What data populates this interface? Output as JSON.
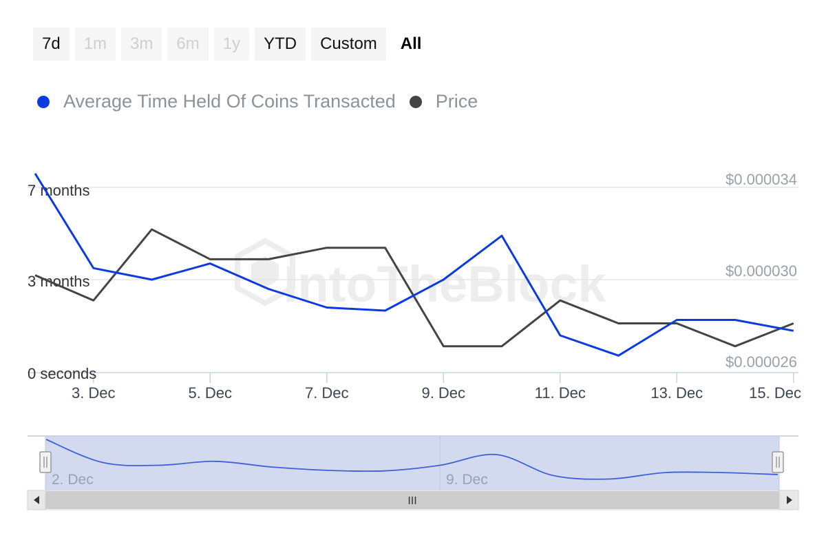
{
  "range_selector": {
    "buttons": [
      {
        "label": "7d",
        "state": "normal"
      },
      {
        "label": "1m",
        "state": "disabled"
      },
      {
        "label": "3m",
        "state": "disabled"
      },
      {
        "label": "6m",
        "state": "disabled"
      },
      {
        "label": "1y",
        "state": "disabled"
      },
      {
        "label": "YTD",
        "state": "normal"
      },
      {
        "label": "Custom",
        "state": "normal"
      },
      {
        "label": "All",
        "state": "active"
      }
    ]
  },
  "watermark": "IntoTheBlock",
  "colors": {
    "avg_time": "#0b3be0",
    "price": "#444444",
    "navigator_fill": "#d3daef",
    "navigator_line": "#3f5fd8",
    "grid": "#e6e6e6",
    "axis_text": "#333333",
    "right_axis_text": "#9aa1a7",
    "x_axis_text": "#3c4650"
  },
  "chart_data": {
    "type": "line",
    "x": [
      "2. Dec",
      "3. Dec",
      "4. Dec",
      "5. Dec",
      "6. Dec",
      "7. Dec",
      "8. Dec",
      "9. Dec",
      "10. Dec",
      "11. Dec",
      "12. Dec",
      "13. Dec",
      "14. Dec",
      "15. Dec"
    ],
    "x_tick_labels": [
      "3. Dec",
      "5. Dec",
      "7. Dec",
      "9. Dec",
      "11. Dec",
      "13. Dec",
      "15. Dec"
    ],
    "series": [
      {
        "name": "Average Time Held Of Coins Transacted",
        "axis": "left",
        "values_months": [
          7.6,
          3.5,
          3.0,
          3.7,
          2.7,
          2.1,
          2.0,
          3.0,
          4.9,
          1.2,
          0.55,
          1.7,
          1.7,
          1.35
        ]
      },
      {
        "name": "Price",
        "axis": "right",
        "values": [
          2.98e-05,
          2.87e-05,
          3.18e-05,
          3.05e-05,
          3.05e-05,
          3.1e-05,
          3.1e-05,
          2.67e-05,
          2.67e-05,
          2.87e-05,
          2.77e-05,
          2.77e-05,
          2.67e-05,
          2.77e-05
        ]
      }
    ],
    "left_axis": {
      "ticks": [
        "0 seconds",
        "3 months",
        "7 months"
      ]
    },
    "right_axis": {
      "ticks": [
        "$0.000026",
        "$0.000030",
        "$0.000034"
      ],
      "range": [
        2.6e-05,
        3.4e-05
      ]
    },
    "grid": true,
    "legend_position": "top-left"
  },
  "navigator": {
    "labels": [
      "2. Dec",
      "9. Dec"
    ],
    "scroll_grip": "III"
  }
}
